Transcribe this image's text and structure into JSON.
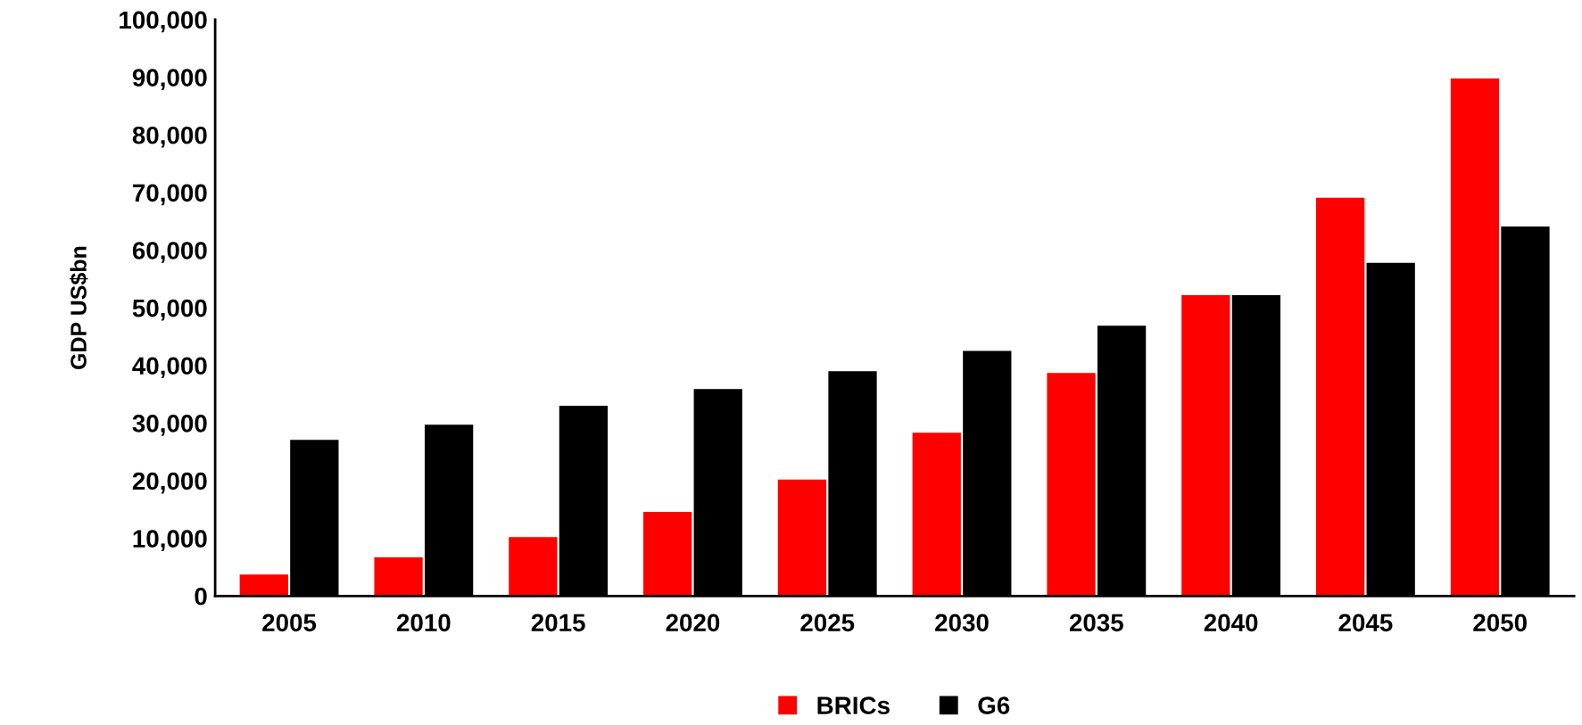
{
  "chart_data": {
    "type": "bar",
    "ylabel": "GDP US$bn",
    "categories": [
      "2005",
      "2010",
      "2015",
      "2020",
      "2025",
      "2030",
      "2035",
      "2040",
      "2045",
      "2050"
    ],
    "series": [
      {
        "name": "BRICs",
        "color": "#ff0000",
        "values": [
          3700,
          6700,
          10200,
          14600,
          20200,
          28300,
          38700,
          52200,
          69100,
          89800
        ]
      },
      {
        "name": "G6",
        "color": "#000000",
        "values": [
          27100,
          29700,
          33000,
          35900,
          39000,
          42500,
          46900,
          52200,
          57800,
          64100
        ]
      }
    ],
    "ylim": [
      0,
      100000
    ],
    "yticks": [
      {
        "value": 0,
        "label": "0"
      },
      {
        "value": 10000,
        "label": "10,000"
      },
      {
        "value": 20000,
        "label": "20,000"
      },
      {
        "value": 30000,
        "label": "30,000"
      },
      {
        "value": 40000,
        "label": "40,000"
      },
      {
        "value": 50000,
        "label": "50,000"
      },
      {
        "value": 60000,
        "label": "60,000"
      },
      {
        "value": 70000,
        "label": "70,000"
      },
      {
        "value": 80000,
        "label": "80,000"
      },
      {
        "value": 90000,
        "label": "90,000"
      },
      {
        "value": 100000,
        "label": "100,000"
      }
    ],
    "grid": false,
    "legend": "bottom"
  }
}
